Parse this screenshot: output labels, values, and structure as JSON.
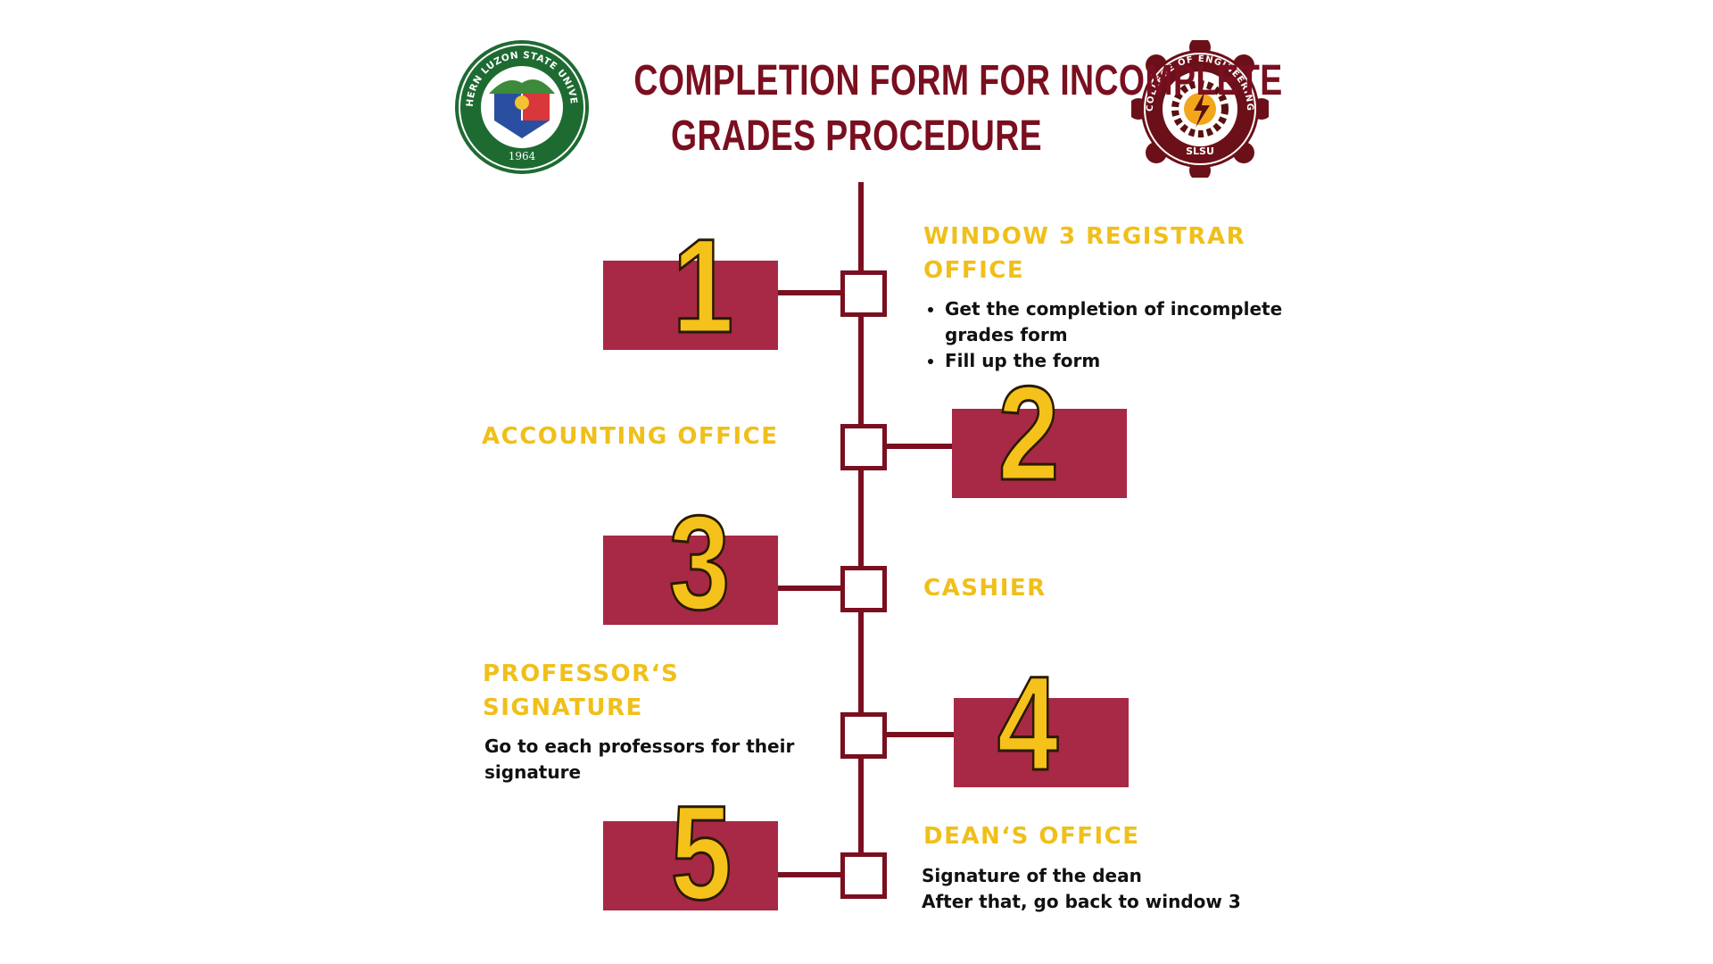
{
  "title": {
    "line1": "COMPLETION FORM FOR INCOMPLETE",
    "line2": "GRADES PROCEDURE"
  },
  "logos": {
    "left": {
      "text_top": "SOUTHERN LUZON STATE UNIVERSITY",
      "year": "1964",
      "ring_color": "#1e6b32"
    },
    "right": {
      "text_top": "COLLEGE OF ENGINEERING",
      "text_bottom": "SLSU",
      "ring_color": "#6b1018"
    }
  },
  "colors": {
    "title": "#7a0f1f",
    "timeline": "#7a0f1f",
    "block": "#a72945",
    "number": "#f4c21b",
    "heading": "#f0bf1a"
  },
  "steps": [
    {
      "number": "1",
      "heading_line1": "WINDOW 3 REGISTRAR",
      "heading_line2": "OFFICE",
      "bullets": [
        "Get the completion of incomplete grades form",
        "Fill up the form"
      ]
    },
    {
      "number": "2",
      "heading": "ACCOUNTING OFFICE"
    },
    {
      "number": "3",
      "heading": "CASHIER"
    },
    {
      "number": "4",
      "heading_line1": "PROFESSOR‘S",
      "heading_line2": "SIGNATURE",
      "text": "Go to each professors for their signature"
    },
    {
      "number": "5",
      "heading": "DEAN‘S OFFICE",
      "lines": [
        "Signature of the dean",
        "After that, go back to window 3"
      ]
    }
  ]
}
